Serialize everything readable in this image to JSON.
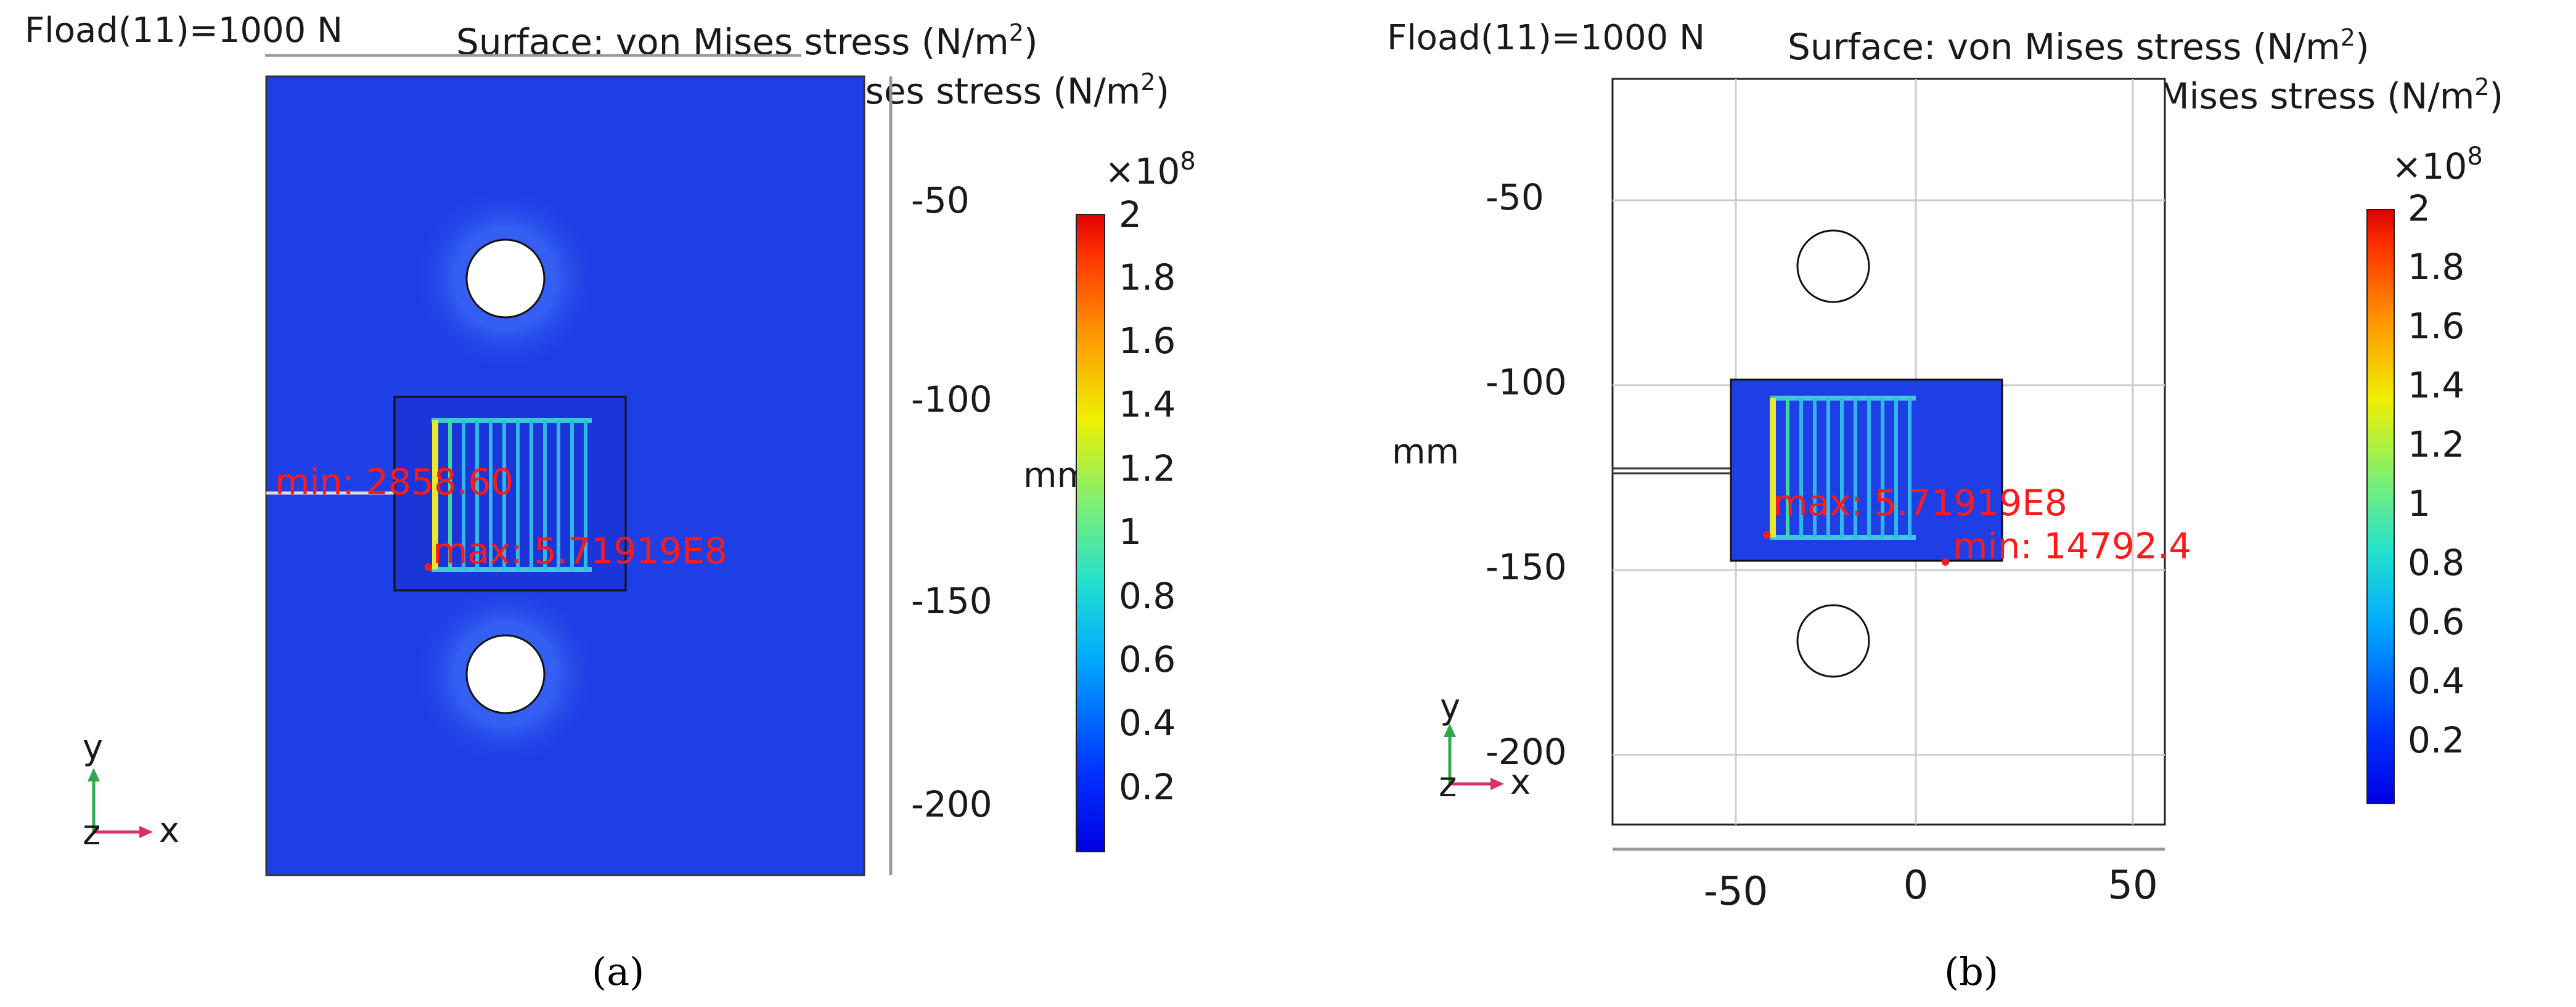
{
  "panels": [
    {
      "id": "a",
      "caption": "(a)",
      "load_label": "Fload(11)=1000 N",
      "title_line1_prefix": "Surface: von Mises stress (N/m",
      "title_line2_prefix": "Max/Min Volume: von Mises stress (N/m",
      "title_sup": "2",
      "title_suffix": ")",
      "min_label": "min: 2858.60",
      "max_label": "max: 5.71919E8",
      "unit_label": "mm",
      "y_ticks": [
        "-50",
        "-100",
        "-150",
        "-200"
      ],
      "x_ticks": [],
      "colorbar_multiplier": "×10",
      "colorbar_exponent": "8",
      "colorbar_ticks": [
        "2",
        "1.8",
        "1.6",
        "1.4",
        "1.2",
        "1",
        "0.8",
        "0.6",
        "0.4",
        "0.2"
      ],
      "axes_labels": {
        "y": "y",
        "z": "z",
        "x": "x"
      }
    },
    {
      "id": "b",
      "caption": "(b)",
      "load_label": "Fload(11)=1000 N",
      "title_line1_prefix": "Surface: von Mises stress (N/m",
      "title_line2_prefix": "Max/Min Volume: von Mises stress (N/m",
      "title_sup": "2",
      "title_suffix": ")",
      "min_label": "min: 14792.4",
      "max_label": "max: 5.71919E8",
      "unit_label": "mm",
      "y_ticks": [
        "-50",
        "-100",
        "-150",
        "-200"
      ],
      "x_ticks": [
        "-50",
        "0",
        "50"
      ],
      "colorbar_multiplier": "×10",
      "colorbar_exponent": "8",
      "colorbar_ticks": [
        "2",
        "1.8",
        "1.6",
        "1.4",
        "1.2",
        "1",
        "0.8",
        "0.6",
        "0.4",
        "0.2"
      ],
      "axes_labels": {
        "y": "y",
        "z": "z",
        "x": "x"
      }
    }
  ],
  "colors": {
    "field_blue": "#1e3fe6",
    "annotation_red": "#ff1a1a",
    "axis_y_green": "#2ea84a",
    "axis_x_pink": "#d9306a"
  }
}
